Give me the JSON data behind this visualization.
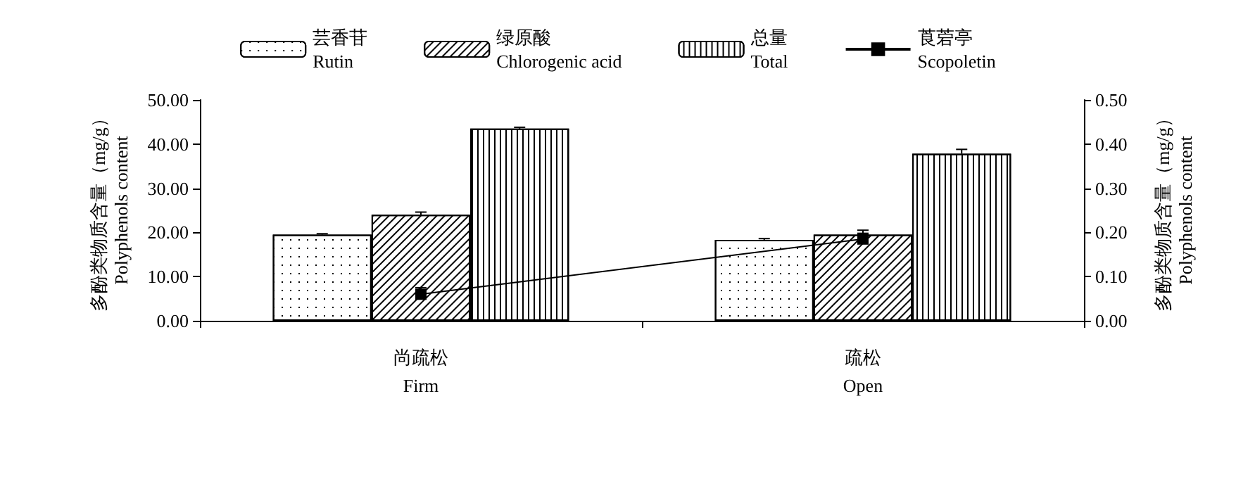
{
  "chart_data": {
    "type": "bar",
    "categories": [
      "尚疏松\nFirm",
      "疏松\nOpen"
    ],
    "ylabel": "多酚类物质含量（mg/g）\nPolyphenols content",
    "y2label": "多酚类物质含量（mg/g）\nPolyphenols content",
    "series": [
      {
        "name": "芸香苷\nRutin",
        "color": "#ffffff",
        "values": [
          19.5,
          18.3
        ],
        "errors": [
          0.2,
          0.3
        ]
      },
      {
        "name": "绿原酸\nChlorogenic acid",
        "color": "#ffffff",
        "values": [
          24.0,
          19.5
        ],
        "errors": [
          0.6,
          0.3
        ]
      },
      {
        "name": "总量\nTotal",
        "color": "#ffffff",
        "values": [
          43.5,
          37.8
        ],
        "errors": [
          0.3,
          1.0
        ]
      },
      {
        "name": "莨菪亭\nScopoletin",
        "type": "line",
        "axis": "y2",
        "color": "#000000",
        "values": [
          0.06,
          0.185
        ],
        "errors": [
          0.015,
          0.02
        ],
        "marker": "square",
        "line_style": "solid"
      }
    ],
    "ylim": [
      0,
      50
    ],
    "yticks": [
      {
        "value": 0,
        "label": "0.00"
      },
      {
        "value": 10,
        "label": "10.00"
      },
      {
        "value": 20,
        "label": "20.00"
      },
      {
        "value": 30,
        "label": "30.00"
      },
      {
        "value": 40,
        "label": "40.00"
      },
      {
        "value": 50,
        "label": "50.00"
      }
    ],
    "y2lim": [
      0,
      0.5
    ],
    "y2ticks": [
      {
        "value": 0,
        "label": "0.00"
      },
      {
        "value": 0.1,
        "label": "0.10"
      },
      {
        "value": 0.2,
        "label": "0.20"
      },
      {
        "value": 0.3,
        "label": "0.30"
      },
      {
        "value": 0.4,
        "label": "0.40"
      },
      {
        "value": 0.5,
        "label": "0.50"
      }
    ],
    "grid": false,
    "legend": "top"
  }
}
